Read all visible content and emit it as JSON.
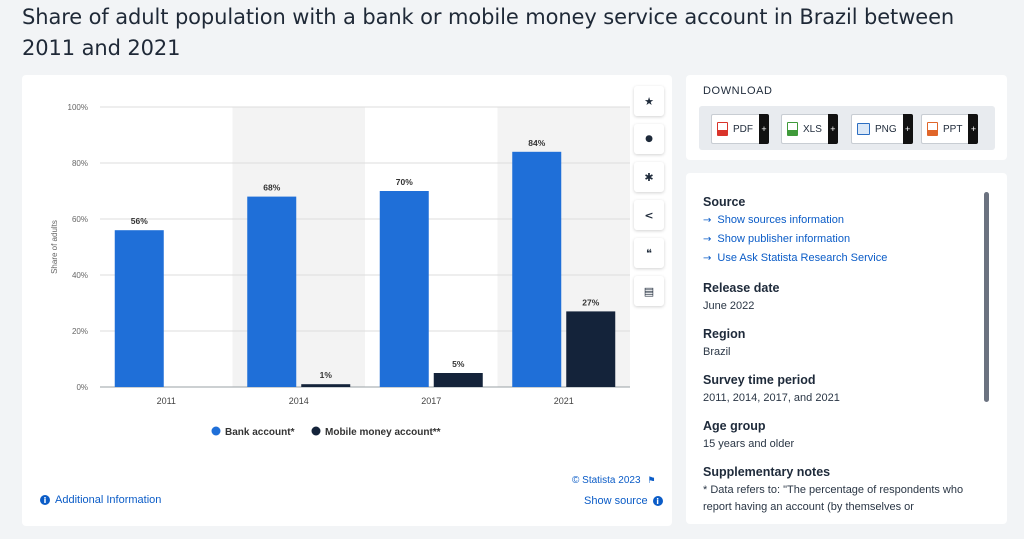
{
  "page": {
    "title": "Share of adult population with a bank or mobile money service account in Brazil between 2011 and 2021"
  },
  "chart_data": {
    "type": "bar",
    "categories": [
      "2011",
      "2014",
      "2017",
      "2021"
    ],
    "series": [
      {
        "name": "Bank account*",
        "color": "#1f6fd8",
        "values": [
          56,
          68,
          70,
          84
        ],
        "labels": [
          "56%",
          "68%",
          "70%",
          "84%"
        ]
      },
      {
        "name": "Mobile money account**",
        "color": "#14233a",
        "values": [
          null,
          1,
          5,
          27
        ],
        "labels": [
          "",
          "1%",
          "5%",
          "27%"
        ]
      }
    ],
    "ylabel": "Share of adults",
    "ylim": [
      0,
      100
    ],
    "yticks": [
      0,
      20,
      40,
      60,
      80,
      100
    ],
    "ytick_labels": [
      "0%",
      "20%",
      "40%",
      "60%",
      "80%",
      "100%"
    ],
    "grid": true,
    "legend_position": "bottom-center"
  },
  "chart_footer": {
    "additional_info": "Additional Information",
    "copyright": "© Statista 2023",
    "show_source": "Show source"
  },
  "toolbar": {
    "items": [
      {
        "name": "star-icon",
        "glyph": "★"
      },
      {
        "name": "bell-icon",
        "glyph": "●"
      },
      {
        "name": "gear-icon",
        "glyph": "✱"
      },
      {
        "name": "share-icon",
        "glyph": "<"
      },
      {
        "name": "quote-icon",
        "glyph": "❝"
      },
      {
        "name": "print-icon",
        "glyph": "▤"
      }
    ]
  },
  "download": {
    "title": "DOWNLOAD",
    "buttons": [
      {
        "label": "PDF",
        "icon": "pdf-icon",
        "color": "#d9342b"
      },
      {
        "label": "XLS",
        "icon": "xls-icon",
        "color": "#3f9a3a"
      },
      {
        "label": "PNG",
        "icon": "png-icon",
        "color": "#2c6ec2"
      },
      {
        "label": "PPT",
        "icon": "ppt-icon",
        "color": "#e0662a"
      }
    ],
    "plus": "+"
  },
  "source_panel": {
    "source_heading": "Source",
    "links": [
      "Show sources information",
      "Show publisher information",
      "Use Ask Statista Research Service"
    ],
    "release_heading": "Release date",
    "release_value": "June 2022",
    "region_heading": "Region",
    "region_value": "Brazil",
    "survey_heading": "Survey time period",
    "survey_value": "2011, 2014, 2017, and 2021",
    "age_heading": "Age group",
    "age_value": "15 years and older",
    "notes_heading": "Supplementary notes",
    "notes_value": "* Data refers to: \"The percentage of respondents who report having an account (by themselves or"
  }
}
